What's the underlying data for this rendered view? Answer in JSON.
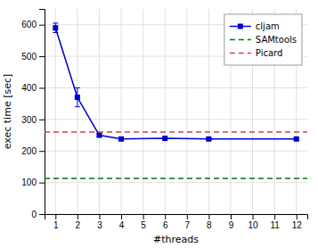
{
  "chart_data": {
    "type": "line",
    "xlabel": "#threads",
    "ylabel": "exec time [sec]",
    "series": [
      {
        "name": "cljam",
        "color": "#0000cc",
        "x": [
          1,
          2,
          3,
          4,
          6,
          8,
          12
        ],
        "values": [
          590,
          370,
          250,
          238,
          240,
          238,
          238
        ],
        "errors": [
          15,
          30,
          5,
          3,
          3,
          3,
          3
        ],
        "marker": "square",
        "line_style": "solid"
      },
      {
        "name": "SAMtools",
        "color": "#007700",
        "x": [
          0.5,
          12.5
        ],
        "values": [
          113,
          113
        ],
        "line_style": "dashed"
      },
      {
        "name": "Picard",
        "color": "#cc4444",
        "x": [
          0.5,
          12.5
        ],
        "values": [
          260,
          260
        ],
        "line_style": "dashed"
      }
    ],
    "xlim": [
      0.5,
      12.5
    ],
    "ylim": [
      0,
      650
    ],
    "xticks": [
      1,
      2,
      3,
      4,
      5,
      6,
      7,
      8,
      9,
      10,
      11,
      12
    ],
    "yticks": [
      0,
      100,
      200,
      300,
      400,
      500,
      600
    ],
    "grid": true,
    "legend": "upper-right"
  }
}
